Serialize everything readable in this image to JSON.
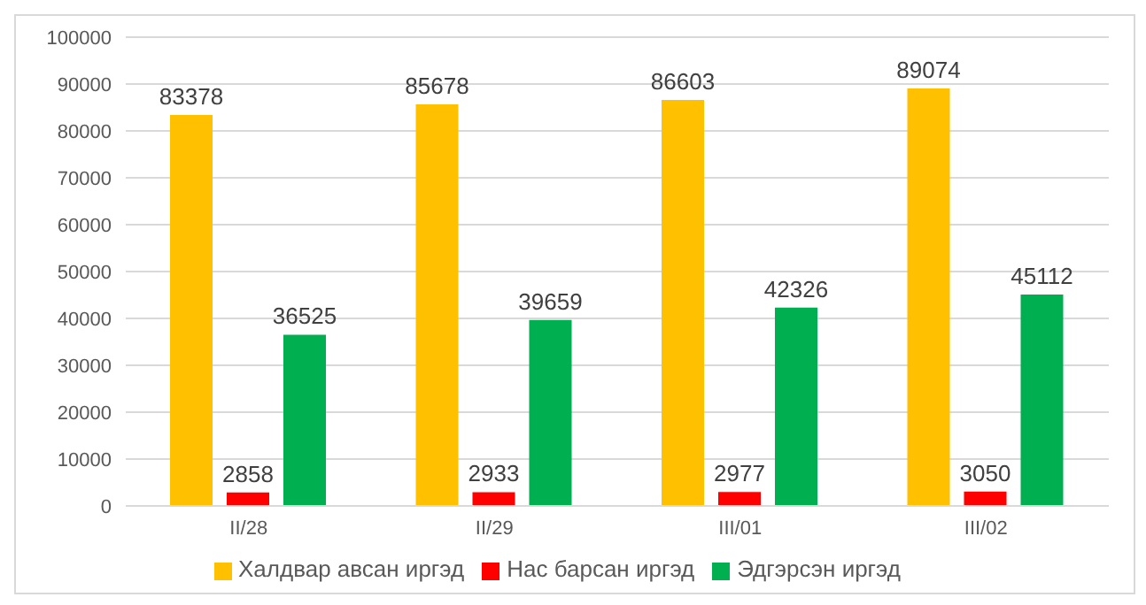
{
  "chart_data": {
    "type": "bar",
    "categories": [
      "II/28",
      "II/29",
      "III/01",
      "III/02"
    ],
    "series": [
      {
        "name": "Халдвар авсан иргэд",
        "color": "#ffc000",
        "values": [
          83378,
          85678,
          86603,
          89074
        ]
      },
      {
        "name": "Нас барсан иргэд",
        "color": "#ff0000",
        "values": [
          2858,
          2933,
          2977,
          3050
        ]
      },
      {
        "name": "Эдгэрсэн иргэд",
        "color": "#00b050",
        "values": [
          36525,
          39659,
          42326,
          45112
        ]
      }
    ],
    "ylim": [
      0,
      100000
    ],
    "yticks": [
      0,
      10000,
      20000,
      30000,
      40000,
      50000,
      60000,
      70000,
      80000,
      90000,
      100000
    ],
    "grid": "y",
    "legend": "bottom",
    "data_labels": true
  }
}
